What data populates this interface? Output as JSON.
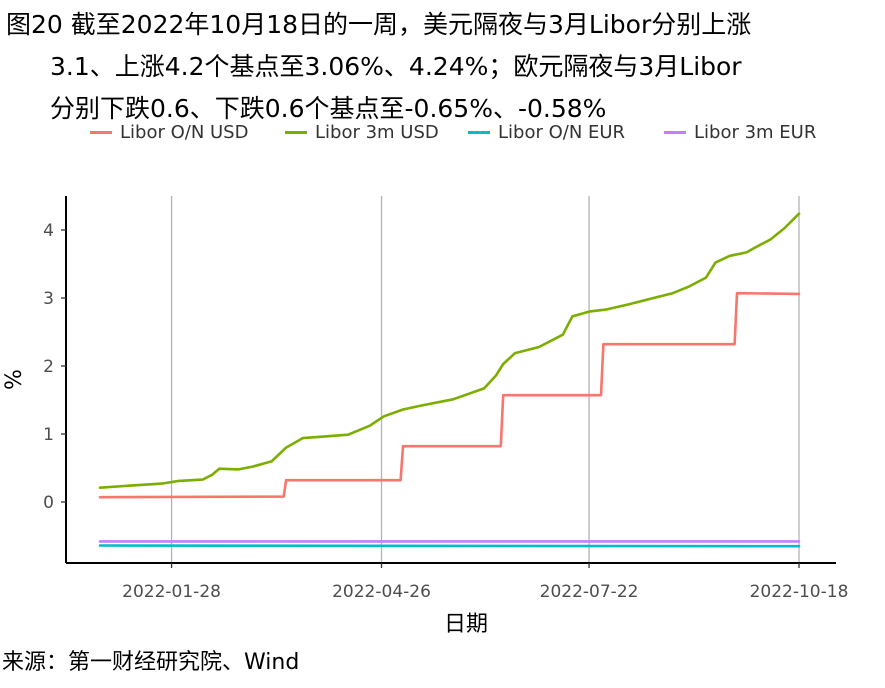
{
  "title_lines": [
    "图20  截至2022年10月18日的一周，美元隔夜与3月Libor分别上涨",
    "3.1、上涨4.2个基点至3.06%、4.24%；欧元隔夜与3月Libor",
    "分别下跌0.6、下跌0.6个基点至-0.65%、-0.58%"
  ],
  "source": "来源：第一财经研究院、Wind",
  "chart_data": {
    "type": "line",
    "xlabel": "日期",
    "ylabel": "%",
    "x_ticks": [
      "2022-01-28",
      "2022-04-26",
      "2022-07-22",
      "2022-10-18"
    ],
    "y_ticks": [
      0,
      1,
      2,
      3,
      4
    ],
    "ylim": [
      -0.85,
      4.5
    ],
    "xlim": [
      "2021-12-29",
      "2022-10-18"
    ],
    "grid": "vertical major lines at x ticks",
    "legend_position": "top",
    "series": [
      {
        "name": "Libor O/N USD",
        "color": "#F8766D",
        "step": true,
        "points": [
          [
            "2021-12-29",
            0.07
          ],
          [
            "2022-03-16",
            0.08
          ],
          [
            "2022-03-17",
            0.32
          ],
          [
            "2022-05-04",
            0.32
          ],
          [
            "2022-05-05",
            0.82
          ],
          [
            "2022-06-15",
            0.82
          ],
          [
            "2022-06-16",
            1.57
          ],
          [
            "2022-07-27",
            1.57
          ],
          [
            "2022-07-28",
            2.32
          ],
          [
            "2022-09-21",
            2.32
          ],
          [
            "2022-09-22",
            3.07
          ],
          [
            "2022-10-18",
            3.06
          ]
        ]
      },
      {
        "name": "Libor 3m USD",
        "color": "#7CAE00",
        "step": false,
        "points": [
          [
            "2021-12-29",
            0.21
          ],
          [
            "2022-01-10",
            0.24
          ],
          [
            "2022-01-24",
            0.27
          ],
          [
            "2022-01-31",
            0.31
          ],
          [
            "2022-02-10",
            0.33
          ],
          [
            "2022-02-14",
            0.4
          ],
          [
            "2022-02-17",
            0.49
          ],
          [
            "2022-02-25",
            0.48
          ],
          [
            "2022-03-03",
            0.52
          ],
          [
            "2022-03-11",
            0.6
          ],
          [
            "2022-03-17",
            0.8
          ],
          [
            "2022-03-24",
            0.94
          ],
          [
            "2022-04-01",
            0.96
          ],
          [
            "2022-04-12",
            0.99
          ],
          [
            "2022-04-21",
            1.12
          ],
          [
            "2022-04-27",
            1.26
          ],
          [
            "2022-05-05",
            1.36
          ],
          [
            "2022-05-13",
            1.42
          ],
          [
            "2022-05-26",
            1.51
          ],
          [
            "2022-06-08",
            1.67
          ],
          [
            "2022-06-13",
            1.86
          ],
          [
            "2022-06-16",
            2.03
          ],
          [
            "2022-06-21",
            2.19
          ],
          [
            "2022-07-01",
            2.28
          ],
          [
            "2022-07-11",
            2.46
          ],
          [
            "2022-07-15",
            2.73
          ],
          [
            "2022-07-22",
            2.8
          ],
          [
            "2022-07-29",
            2.83
          ],
          [
            "2022-08-08",
            2.91
          ],
          [
            "2022-08-18",
            3.0
          ],
          [
            "2022-08-26",
            3.07
          ],
          [
            "2022-09-02",
            3.17
          ],
          [
            "2022-09-09",
            3.3
          ],
          [
            "2022-09-13",
            3.52
          ],
          [
            "2022-09-19",
            3.62
          ],
          [
            "2022-09-26",
            3.67
          ],
          [
            "2022-09-30",
            3.75
          ],
          [
            "2022-10-06",
            3.86
          ],
          [
            "2022-10-12",
            4.03
          ],
          [
            "2022-10-18",
            4.24
          ]
        ]
      },
      {
        "name": "Libor O/N EUR",
        "color": "#00BFC4",
        "step": false,
        "points": [
          [
            "2021-12-29",
            -0.64
          ],
          [
            "2022-10-18",
            -0.65
          ]
        ]
      },
      {
        "name": "Libor 3m EUR",
        "color": "#C77CFF",
        "step": false,
        "points": [
          [
            "2021-12-29",
            -0.58
          ],
          [
            "2022-10-18",
            -0.58
          ]
        ]
      }
    ]
  }
}
